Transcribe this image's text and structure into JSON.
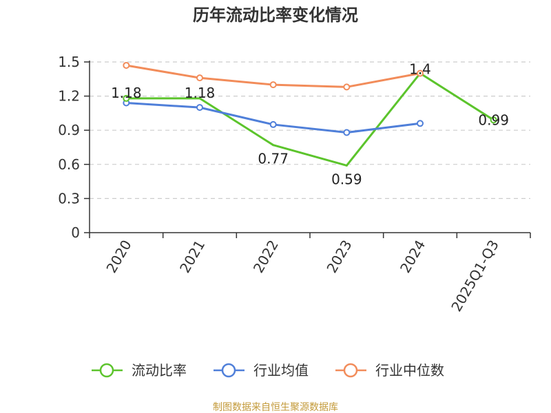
{
  "chart_data": {
    "type": "line",
    "title": "历年流动比率变化情况",
    "categories": [
      "2020",
      "2021",
      "2022",
      "2023",
      "2024",
      "2025Q1-Q3"
    ],
    "ylim": [
      0,
      1.5
    ],
    "yticks": [
      "0",
      "0.3",
      "0.6",
      "0.9",
      "1.2",
      "1.5"
    ],
    "grid": true,
    "legend_position": "bottom",
    "series": [
      {
        "name": "流动比率",
        "color": "#5cc42c",
        "values": [
          1.18,
          1.18,
          0.77,
          0.59,
          1.4,
          0.99
        ],
        "labels": [
          "1.18",
          "1.18",
          "0.77",
          "0.59",
          "1.4",
          "0.99"
        ]
      },
      {
        "name": "行业均值",
        "color": "#4f7fd9",
        "values": [
          1.14,
          1.1,
          0.95,
          0.88,
          0.96,
          null
        ]
      },
      {
        "name": "行业中位数",
        "color": "#f28c5a",
        "values": [
          1.47,
          1.36,
          1.3,
          1.28,
          1.4,
          null
        ]
      }
    ]
  },
  "source_text": "制图数据来自恒生聚源数据库",
  "colors": {
    "source": "#c39a3a",
    "axis": "#333333",
    "grid": "#cccccc"
  }
}
